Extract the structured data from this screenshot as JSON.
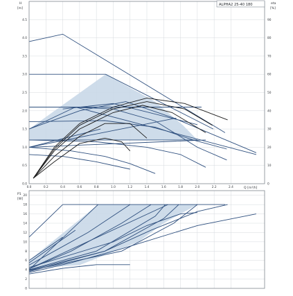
{
  "chart_data": [
    {
      "type": "line",
      "id": "head",
      "model": "ALPHA2 25-40 180",
      "ylabel_symbol": "H",
      "ylabel_unit": "[m]",
      "y2label": "eta",
      "y2label_unit": "[%]",
      "xlabel": "Q [m³/h]",
      "xlim": [
        0,
        2.8
      ],
      "ylim": [
        0,
        5.0
      ],
      "y2lim": [
        0,
        100
      ],
      "xticks": [
        "0.0",
        "0.2",
        "0.4",
        "0.6",
        "0.8",
        "1.0",
        "1.2",
        "1.4",
        "1.6",
        "1.8",
        "2.0",
        "2.2",
        "2.4"
      ],
      "yticks": [
        "0.0",
        "0.5",
        "1.0",
        "1.5",
        "2.0",
        "2.5",
        "3.0",
        "3.5",
        "4.0",
        "4.5"
      ],
      "y2ticks": [
        "0",
        "10",
        "20",
        "30",
        "40",
        "50",
        "60",
        "70",
        "80",
        "90"
      ],
      "grid": true,
      "colors": {
        "curve": "#2e4f7e",
        "eta": "#1a1a1a",
        "fill": "#c9d8e8",
        "grid": "#d5d9de"
      },
      "head_curves": [
        {
          "x": [
            0,
            0.4,
            2.33
          ],
          "y": [
            3.9,
            4.1,
            1.4
          ]
        },
        {
          "x": [
            0,
            0.33,
            0.91,
            2.19
          ],
          "y": [
            3.0,
            3.0,
            3.0,
            1.5
          ]
        },
        {
          "x": [
            0,
            0.6,
            1.15,
            1.72,
            2.7
          ],
          "y": [
            1.5,
            2.0,
            2.25,
            1.8,
            0.85
          ]
        },
        {
          "x": [
            0,
            0.5,
            1.0,
            1.5,
            2.0,
            2.35
          ],
          "y": [
            2.1,
            2.1,
            2.05,
            1.72,
            1.0,
            0.65
          ]
        },
        {
          "x": [
            0,
            0.9,
            1.5,
            1.95,
            2.35
          ],
          "y": [
            1.7,
            1.73,
            1.55,
            1.2,
            0.95
          ]
        },
        {
          "x": [
            0,
            0.8,
            1.4,
            1.8,
            2.1
          ],
          "y": [
            1.2,
            1.15,
            1.0,
            0.8,
            0.45
          ]
        },
        {
          "x": [
            0,
            0.5,
            0.9,
            1.2,
            1.5
          ],
          "y": [
            1.0,
            0.9,
            0.75,
            0.55,
            0.28
          ]
        },
        {
          "x": [
            0,
            0.4,
            0.8,
            1.2
          ],
          "y": [
            0.8,
            0.75,
            0.6,
            0.4
          ]
        }
      ],
      "control_lines": [
        {
          "x": [
            0,
            2.1
          ],
          "y": [
            1.0,
            1.2
          ]
        },
        {
          "x": [
            0,
            1.75
          ],
          "y": [
            1.0,
            1.8
          ]
        },
        {
          "x": [
            0,
            0.85
          ],
          "y": [
            1.0,
            1.5
          ]
        },
        {
          "x": [
            0,
            0.55
          ],
          "y": [
            1.5,
            2.1
          ]
        },
        {
          "x": [
            0,
            2.05
          ],
          "y": [
            2.1,
            2.1
          ]
        },
        {
          "x": [
            0,
            2.0
          ],
          "y": [
            1.2,
            1.2
          ]
        }
      ],
      "upper_segments": [
        {
          "x": [
            0.55,
            2.7
          ],
          "y": [
            2.1,
            0.8
          ]
        },
        {
          "x": [
            0.4,
            1.0,
            2.0
          ],
          "y": [
            2.05,
            2.2,
            1.62
          ]
        }
      ],
      "hatch": [
        [
          0.0,
          1.0
        ],
        [
          0.0,
          1.5
        ],
        [
          0.91,
          3.0
        ],
        [
          1.5,
          2.25
        ],
        [
          1.83,
          1.6
        ],
        [
          2.0,
          1.2
        ],
        [
          0.0,
          1.2
        ]
      ],
      "eta_curves": [
        {
          "x": [
            0.05,
            0.3,
            0.6,
            1.0,
            1.4,
            1.85,
            2.36
          ],
          "y": [
            3,
            20,
            33,
            42,
            47,
            44,
            35
          ]
        },
        {
          "x": [
            0.05,
            0.3,
            0.6,
            1.0,
            1.4,
            1.85,
            2.18
          ],
          "y": [
            3,
            19,
            32,
            41,
            45,
            41,
            32
          ]
        },
        {
          "x": [
            0.05,
            0.3,
            0.6,
            1.0,
            1.35,
            1.7,
            2.1
          ],
          "y": [
            3,
            18,
            30,
            39,
            43,
            39,
            28
          ]
        },
        {
          "x": [
            0.05,
            0.3,
            0.6,
            0.9,
            1.2,
            1.4
          ],
          "y": [
            3,
            15,
            26,
            33,
            33,
            25
          ]
        },
        {
          "x": [
            0.05,
            0.3,
            0.6,
            0.9,
            1.1,
            1.2
          ],
          "y": [
            3,
            12,
            22,
            25,
            23,
            18
          ]
        }
      ]
    },
    {
      "type": "line",
      "id": "power",
      "ylabel_symbol": "P1",
      "ylabel_unit": "[W]",
      "xlim": [
        0,
        2.8
      ],
      "ylim": [
        0,
        21
      ],
      "yticks": [
        "0",
        "2",
        "4",
        "6",
        "8",
        "10",
        "12",
        "14",
        "16",
        "18",
        "20"
      ],
      "grid": true,
      "max_line": {
        "x": [
          0.4,
          2.33
        ],
        "y": [
          18,
          18
        ]
      },
      "power_curves": [
        {
          "x": [
            0,
            0.4
          ],
          "y": [
            11,
            18
          ]
        },
        {
          "x": [
            0,
            0.9,
            1.45,
            2.0,
            2.36
          ],
          "y": [
            3.6,
            8,
            12.5,
            16.5,
            18
          ]
        },
        {
          "x": [
            0,
            1.1,
            1.72,
            2.0
          ],
          "y": [
            3.8,
            8,
            14,
            18
          ]
        },
        {
          "x": [
            0,
            0.9,
            1.6,
            1.78
          ],
          "y": [
            3.9,
            8,
            15,
            18
          ]
        },
        {
          "x": [
            0,
            0.8,
            1.5,
            1.62
          ],
          "y": [
            4.0,
            8,
            15.5,
            18
          ]
        },
        {
          "x": [
            0,
            0.5,
            1.1,
            1.45
          ],
          "y": [
            4.2,
            8,
            14,
            18
          ]
        },
        {
          "x": [
            0,
            0.3,
            0.7,
            1.2
          ],
          "y": [
            5.0,
            8,
            12,
            18
          ]
        },
        {
          "x": [
            0,
            0.5,
            1.1,
            2.0,
            2.7
          ],
          "y": [
            3.4,
            5.5,
            8.5,
            13.5,
            16
          ]
        },
        {
          "x": [
            0,
            0.4,
            0.8,
            1.2
          ],
          "y": [
            3.1,
            4.3,
            5.1,
            5.1
          ]
        },
        {
          "x": [
            0,
            1.0,
            1.4,
            1.8,
            2.0
          ],
          "y": [
            4.5,
            10,
            13.5,
            16,
            16.3
          ]
        }
      ],
      "control_lines": [
        {
          "x": [
            0,
            1.65
          ],
          "y": [
            4.2,
            18
          ]
        },
        {
          "x": [
            0,
            0.82
          ],
          "y": [
            4.0,
            18
          ]
        },
        {
          "x": [
            0,
            0.55
          ],
          "y": [
            5.5,
            12.5
          ]
        },
        {
          "x": [
            0,
            0.4
          ],
          "y": [
            6.0,
            11
          ]
        }
      ],
      "hatch": [
        [
          0.0,
          4.2
        ],
        [
          0.0,
          6.0
        ],
        [
          0.82,
          18.0
        ],
        [
          2.0,
          18.0
        ],
        [
          1.6,
          14.0
        ],
        [
          1.3,
          10.0
        ],
        [
          0.6,
          5.0
        ]
      ]
    }
  ]
}
